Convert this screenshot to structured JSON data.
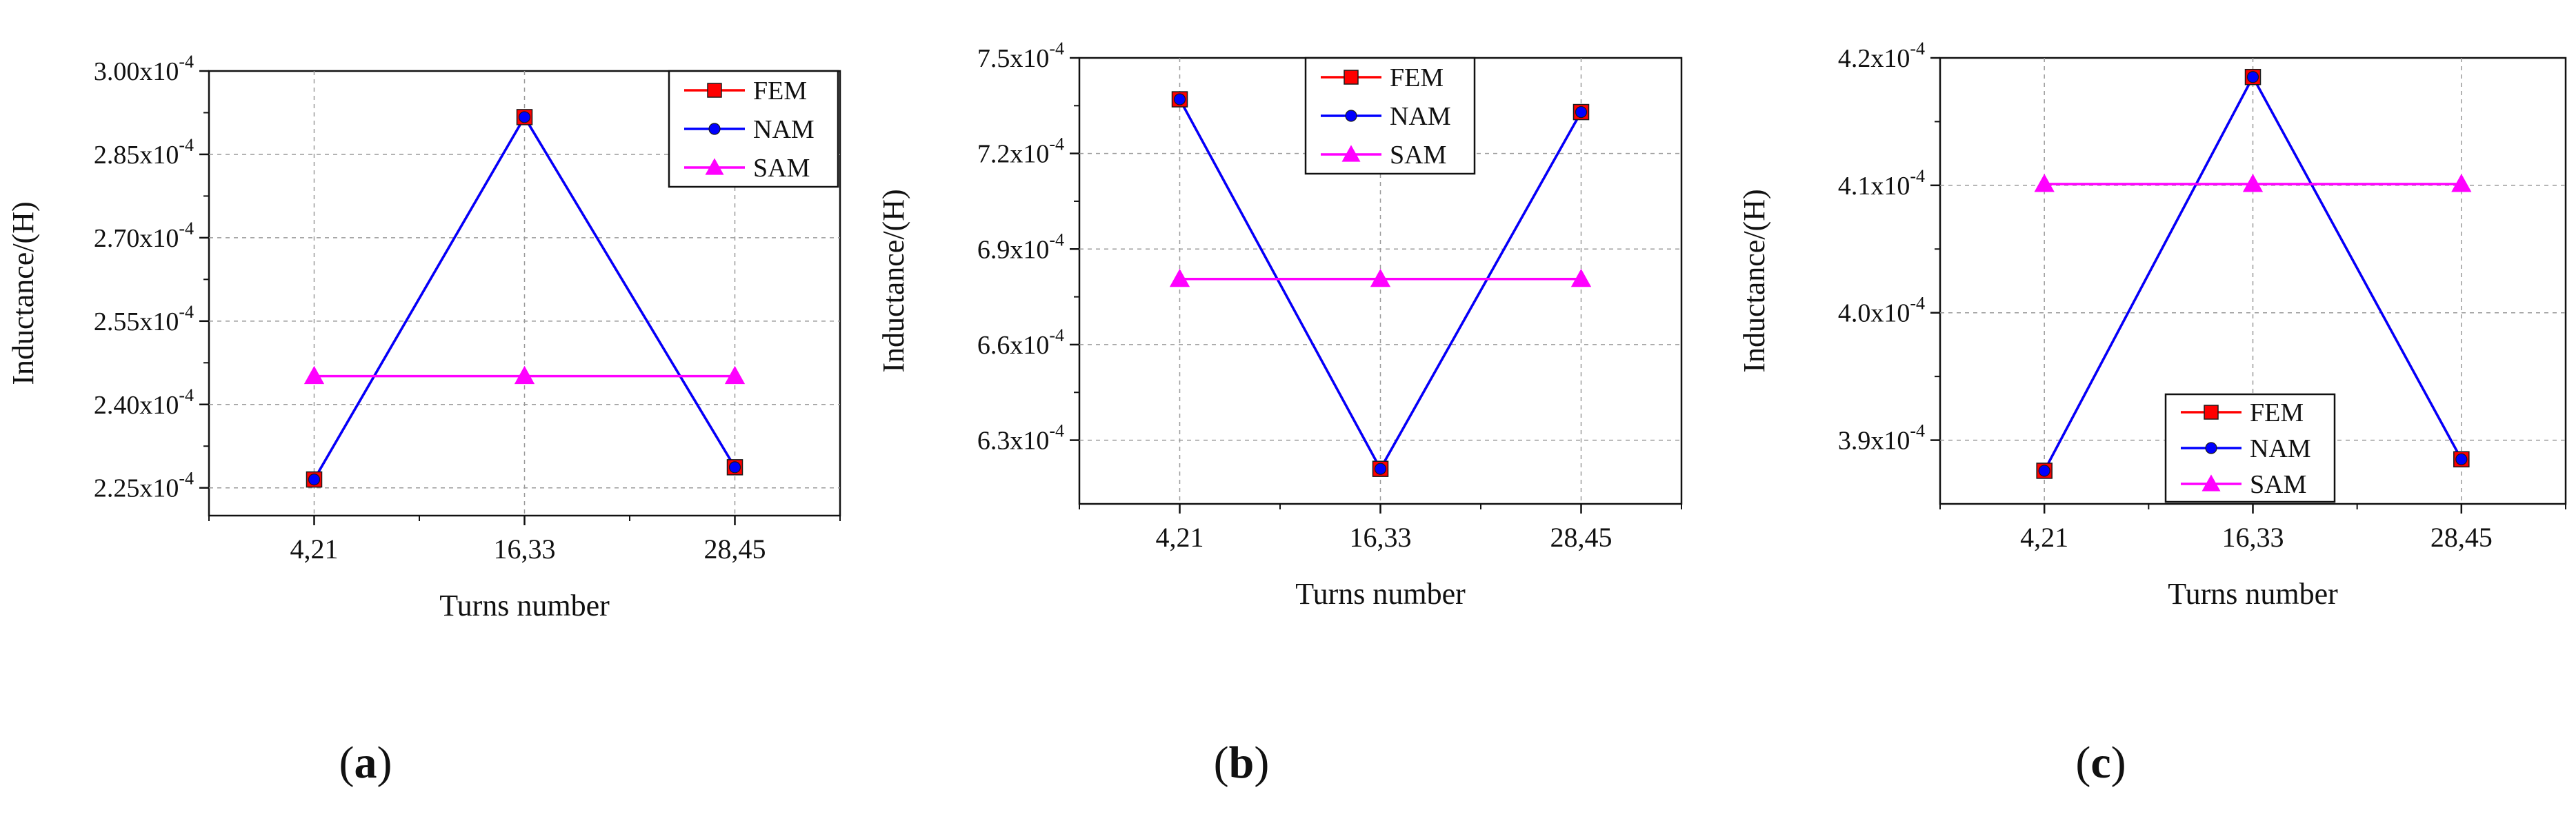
{
  "chart_data": [
    {
      "type": "line",
      "panel_label": "(a)",
      "xlabel": "Turns number",
      "ylabel": "Inductance/(H)",
      "categories": [
        "4,21",
        "16,33",
        "28,45"
      ],
      "ylim": [
        0.00022,
        0.0003
      ],
      "ytick_values": [
        0.000225,
        0.00024,
        0.000255,
        0.00027,
        0.000285,
        0.0003
      ],
      "ytick_labels": [
        "2.25x10^-4",
        "2.40x10^-4",
        "2.55x10^-4",
        "2.70x10^-4",
        "2.85x10^-4",
        "3.00x10^-4"
      ],
      "legend_position": "top-right",
      "grid": true,
      "series": [
        {
          "name": "FEM",
          "color": "#ff0000",
          "marker": "square",
          "values": [
            0.0002265,
            0.0002917,
            0.0002287
          ]
        },
        {
          "name": "NAM",
          "color": "#0000ff",
          "marker": "circle",
          "values": [
            0.0002265,
            0.0002917,
            0.0002287
          ]
        },
        {
          "name": "SAM",
          "color": "#ff00ff",
          "marker": "triangle",
          "values": [
            0.0002451,
            0.0002451,
            0.0002451
          ]
        }
      ]
    },
    {
      "type": "line",
      "panel_label": "(b)",
      "xlabel": "Turns number",
      "ylabel": "Inductance/(H)",
      "categories": [
        "4,21",
        "16,33",
        "28,45"
      ],
      "ylim": [
        0.00061,
        0.00075
      ],
      "ytick_values": [
        0.00063,
        0.00066,
        0.00069,
        0.00072,
        0.00075
      ],
      "ytick_labels": [
        "6.3x10^-4",
        "6.6x10^-4",
        "6.9x10^-4",
        "7.2x10^-4",
        "7.5x10^-4"
      ],
      "legend_position": "top-center",
      "grid": true,
      "series": [
        {
          "name": "FEM",
          "color": "#ff0000",
          "marker": "square",
          "values": [
            0.000737,
            0.000621,
            0.000733
          ]
        },
        {
          "name": "NAM",
          "color": "#0000ff",
          "marker": "circle",
          "values": [
            0.000737,
            0.000621,
            0.000733
          ]
        },
        {
          "name": "SAM",
          "color": "#ff00ff",
          "marker": "triangle",
          "values": [
            0.0006806,
            0.0006806,
            0.0006806
          ]
        }
      ]
    },
    {
      "type": "line",
      "panel_label": "(c)",
      "xlabel": "Turns number",
      "ylabel": "Inductance/(H)",
      "categories": [
        "4,21",
        "16,33",
        "28,45"
      ],
      "ylim": [
        0.000385,
        0.00042
      ],
      "ytick_values": [
        0.00039,
        0.0004,
        0.00041,
        0.00042
      ],
      "ytick_labels": [
        "3.9x10^-4",
        "4.0x10^-4",
        "4.1x10^-4",
        "4.2x10^-4"
      ],
      "legend_position": "bottom-center",
      "grid": true,
      "series": [
        {
          "name": "FEM",
          "color": "#ff0000",
          "marker": "square",
          "values": [
            0.0003876,
            0.0004185,
            0.0003885
          ]
        },
        {
          "name": "NAM",
          "color": "#0000ff",
          "marker": "circle",
          "values": [
            0.0003876,
            0.0004185,
            0.0003885
          ]
        },
        {
          "name": "SAM",
          "color": "#ff00ff",
          "marker": "triangle",
          "values": [
            0.0004101,
            0.0004101,
            0.0004101
          ]
        }
      ]
    }
  ]
}
